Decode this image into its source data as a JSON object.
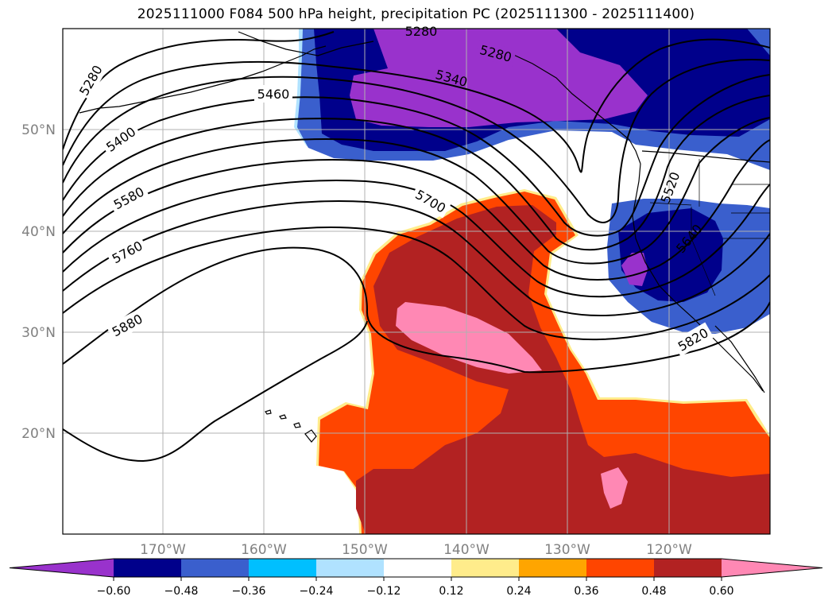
{
  "title": "2025111000 F084 500 hPa height, precipitation PC (2025111300 - 2025111400)",
  "map": {
    "lat_labels": [
      "50°N",
      "40°N",
      "30°N",
      "20°N"
    ],
    "lon_labels": [
      "170°W",
      "160°W",
      "150°W",
      "140°W",
      "130°W",
      "120°W"
    ],
    "contour_labels": [
      "5280",
      "5400",
      "5580",
      "5760",
      "5880",
      "5460",
      "5280",
      "5340",
      "5700",
      "5520",
      "5640",
      "5820"
    ]
  },
  "colorbar": {
    "ticks": [
      "−0.60",
      "−0.48",
      "−0.36",
      "−0.24",
      "−0.12",
      "0.12",
      "0.24",
      "0.36",
      "0.48",
      "0.60"
    ],
    "colors": [
      "#9932cc",
      "#00008b",
      "#3a5fcd",
      "#00bfff",
      "#b0e2ff",
      "#ffffff",
      "#ffec8b",
      "#ffa500",
      "#ff4500",
      "#b22222",
      "#ff88b4"
    ]
  }
}
